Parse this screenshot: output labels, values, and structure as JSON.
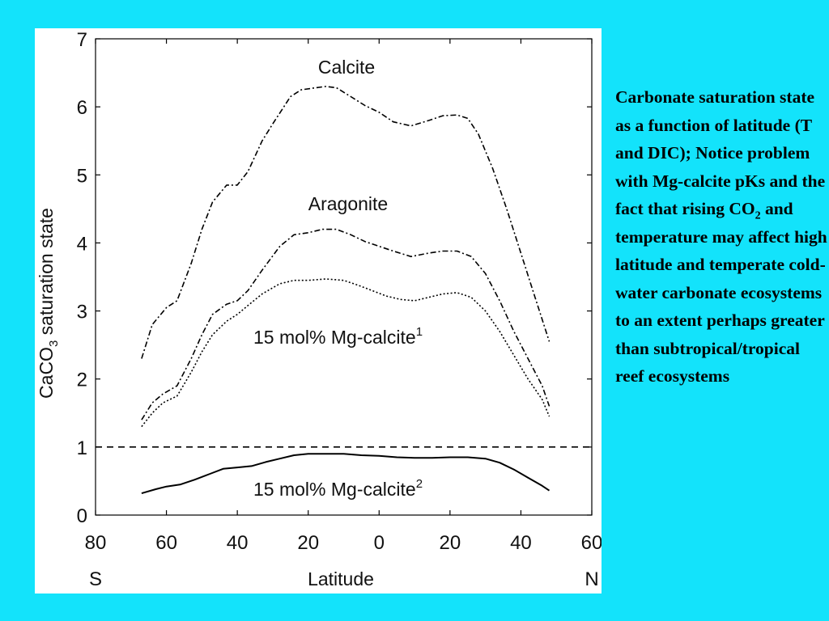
{
  "caption": {
    "text_before": "Carbonate saturation state as a function of latitude (T and DIC); Notice problem with Mg-calcite pKs and the fact that rising CO",
    "subscript": "2",
    "text_after": " and temperature may affect high latitude and temperate cold-water carbonate ecosystems to an extent perhaps greater than subtropical/tropical reef ecosystems"
  },
  "chart_data": {
    "type": "line",
    "xlabel": "Latitude",
    "ylabel": "CaCO3 saturation state",
    "ylabel_parts": [
      "CaCO",
      "3",
      " saturation state"
    ],
    "xlim": [
      -80,
      60
    ],
    "ylim": [
      0,
      7
    ],
    "x_tick_labels": [
      "80",
      "60",
      "40",
      "20",
      "0",
      "20",
      "40",
      "60"
    ],
    "x_tick_values": [
      -80,
      -60,
      -40,
      -20,
      0,
      20,
      40,
      60
    ],
    "x_end_labels": {
      "left": "S",
      "right": "N"
    },
    "y_ticks": [
      0,
      1,
      2,
      3,
      4,
      5,
      6,
      7
    ],
    "reference_line": {
      "y": 1,
      "style": "dashed"
    },
    "series": [
      {
        "name": "Calcite",
        "label_parts": [
          "Calcite"
        ],
        "style": "dashdot",
        "points": [
          [
            -67,
            2.3
          ],
          [
            -64,
            2.8
          ],
          [
            -60,
            3.05
          ],
          [
            -57,
            3.15
          ],
          [
            -53,
            3.7
          ],
          [
            -50,
            4.2
          ],
          [
            -47,
            4.6
          ],
          [
            -43,
            4.85
          ],
          [
            -40,
            4.85
          ],
          [
            -37,
            5.05
          ],
          [
            -33,
            5.5
          ],
          [
            -30,
            5.75
          ],
          [
            -25,
            6.15
          ],
          [
            -22,
            6.25
          ],
          [
            -18,
            6.28
          ],
          [
            -15,
            6.3
          ],
          [
            -12,
            6.28
          ],
          [
            -8,
            6.15
          ],
          [
            -4,
            6.02
          ],
          [
            0,
            5.92
          ],
          [
            4,
            5.78
          ],
          [
            9,
            5.72
          ],
          [
            14,
            5.8
          ],
          [
            18,
            5.87
          ],
          [
            22,
            5.88
          ],
          [
            25,
            5.83
          ],
          [
            28,
            5.6
          ],
          [
            32,
            5.1
          ],
          [
            36,
            4.5
          ],
          [
            40,
            3.85
          ],
          [
            44,
            3.2
          ],
          [
            48,
            2.55
          ]
        ]
      },
      {
        "name": "Aragonite",
        "label_parts": [
          "Aragonite"
        ],
        "style": "dashdot",
        "points": [
          [
            -67,
            1.4
          ],
          [
            -64,
            1.65
          ],
          [
            -61,
            1.78
          ],
          [
            -57,
            1.9
          ],
          [
            -53,
            2.3
          ],
          [
            -50,
            2.65
          ],
          [
            -47,
            2.95
          ],
          [
            -43,
            3.1
          ],
          [
            -40,
            3.15
          ],
          [
            -37,
            3.3
          ],
          [
            -33,
            3.6
          ],
          [
            -28,
            3.95
          ],
          [
            -24,
            4.12
          ],
          [
            -20,
            4.15
          ],
          [
            -16,
            4.2
          ],
          [
            -12,
            4.2
          ],
          [
            -8,
            4.12
          ],
          [
            -4,
            4.02
          ],
          [
            0,
            3.95
          ],
          [
            4,
            3.88
          ],
          [
            9,
            3.8
          ],
          [
            14,
            3.85
          ],
          [
            18,
            3.88
          ],
          [
            22,
            3.88
          ],
          [
            26,
            3.8
          ],
          [
            30,
            3.55
          ],
          [
            34,
            3.15
          ],
          [
            38,
            2.7
          ],
          [
            42,
            2.3
          ],
          [
            46,
            1.9
          ],
          [
            48,
            1.6
          ]
        ]
      },
      {
        "name": "15 mol% Mg-calcite1",
        "label_parts": [
          "15 mol% Mg-calcite",
          "1"
        ],
        "style": "dotted",
        "points": [
          [
            -67,
            1.3
          ],
          [
            -64,
            1.5
          ],
          [
            -61,
            1.65
          ],
          [
            -57,
            1.75
          ],
          [
            -53,
            2.1
          ],
          [
            -50,
            2.4
          ],
          [
            -47,
            2.65
          ],
          [
            -43,
            2.85
          ],
          [
            -40,
            2.95
          ],
          [
            -37,
            3.08
          ],
          [
            -33,
            3.25
          ],
          [
            -28,
            3.4
          ],
          [
            -24,
            3.45
          ],
          [
            -20,
            3.45
          ],
          [
            -15,
            3.47
          ],
          [
            -10,
            3.45
          ],
          [
            -6,
            3.38
          ],
          [
            -2,
            3.3
          ],
          [
            2,
            3.22
          ],
          [
            6,
            3.17
          ],
          [
            10,
            3.15
          ],
          [
            14,
            3.2
          ],
          [
            18,
            3.25
          ],
          [
            22,
            3.27
          ],
          [
            26,
            3.2
          ],
          [
            30,
            3.0
          ],
          [
            34,
            2.7
          ],
          [
            38,
            2.35
          ],
          [
            42,
            2.0
          ],
          [
            46,
            1.7
          ],
          [
            48,
            1.45
          ]
        ]
      },
      {
        "name": "15 mol% Mg-calcite2",
        "label_parts": [
          "15 mol% Mg-calcite",
          "2"
        ],
        "style": "solid",
        "points": [
          [
            -67,
            0.32
          ],
          [
            -63,
            0.38
          ],
          [
            -60,
            0.42
          ],
          [
            -56,
            0.45
          ],
          [
            -52,
            0.52
          ],
          [
            -48,
            0.6
          ],
          [
            -44,
            0.68
          ],
          [
            -40,
            0.7
          ],
          [
            -36,
            0.72
          ],
          [
            -32,
            0.78
          ],
          [
            -28,
            0.83
          ],
          [
            -24,
            0.88
          ],
          [
            -20,
            0.9
          ],
          [
            -15,
            0.9
          ],
          [
            -10,
            0.9
          ],
          [
            -5,
            0.88
          ],
          [
            0,
            0.87
          ],
          [
            5,
            0.85
          ],
          [
            10,
            0.84
          ],
          [
            15,
            0.84
          ],
          [
            20,
            0.85
          ],
          [
            25,
            0.85
          ],
          [
            30,
            0.83
          ],
          [
            34,
            0.77
          ],
          [
            38,
            0.67
          ],
          [
            42,
            0.55
          ],
          [
            46,
            0.43
          ],
          [
            48,
            0.36
          ]
        ]
      }
    ]
  }
}
